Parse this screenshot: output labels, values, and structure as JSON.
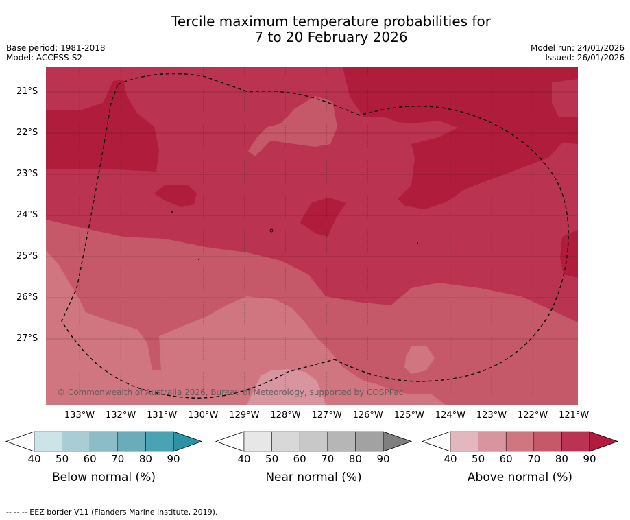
{
  "title_line1": "Tercile maximum temperature probabilities for",
  "title_line2": "7 to 20 February 2026",
  "meta_left": {
    "base_period": "Base period: 1981-2018",
    "model": "Model: ACCESS-S2"
  },
  "meta_right": {
    "model_run": "Model run: 24/01/2026",
    "issued": "Issued: 26/01/2026"
  },
  "lat_labels": [
    "21°S",
    "22°S",
    "23°S",
    "24°S",
    "25°S",
    "26°S",
    "27°S"
  ],
  "lon_labels": [
    "133°W",
    "132°W",
    "131°W",
    "130°W",
    "129°W",
    "128°W",
    "127°W",
    "126°W",
    "125°W",
    "124°W",
    "123°W",
    "122°W",
    "121°W"
  ],
  "copyright": "© Commonwealth of Australia 2026, Bureau of Meteorology, supported by COSPPac",
  "colorbars": [
    {
      "label": "Below normal (%)",
      "ticks": [
        "40",
        "50",
        "60",
        "70",
        "80",
        "90"
      ],
      "colors": [
        "#ffffff",
        "#cce3e8",
        "#a9cdd4",
        "#8bbcc7",
        "#6aacb9",
        "#49a3b2",
        "#2a93a6"
      ]
    },
    {
      "label": "Near normal (%)",
      "ticks": [
        "40",
        "50",
        "60",
        "70",
        "80",
        "90"
      ],
      "colors": [
        "#ffffff",
        "#e7e7e7",
        "#d8d8d8",
        "#c8c8c8",
        "#b6b6b6",
        "#a2a2a2",
        "#7f7f7f"
      ]
    },
    {
      "label": "Above normal (%)",
      "ticks": [
        "40",
        "50",
        "60",
        "70",
        "80",
        "90"
      ],
      "colors": [
        "#ffffff",
        "#e3b7be",
        "#d8959f",
        "#cf7680",
        "#c5596a",
        "#ba3350",
        "#b01c3c"
      ]
    }
  ],
  "footnote": "--  --  -- EEZ border V11 (Flanders Marine Institute, 2019).",
  "colors": {
    "c90": "#b01c3c",
    "c80": "#ba3350",
    "c70": "#c5596a",
    "c60": "#cf7680"
  }
}
